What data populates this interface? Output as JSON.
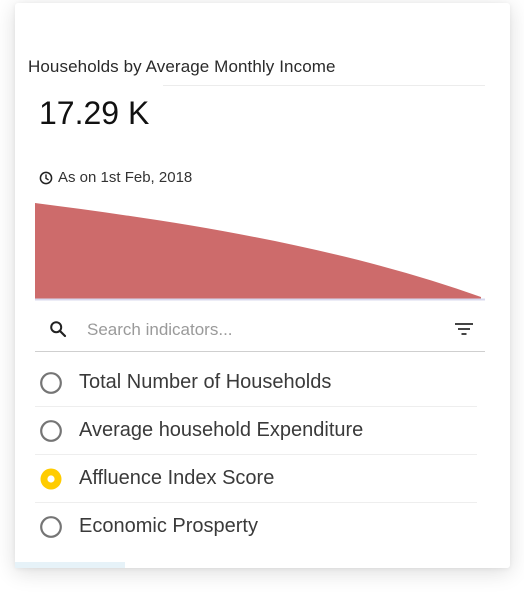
{
  "widget": {
    "title": "Households by Average Monthly Income",
    "value": "17.29 K",
    "as_of": "As on 1st Feb, 2018",
    "icons": {
      "timestamp": "clock-icon"
    }
  },
  "search": {
    "placeholder": "Search indicators...",
    "value": "",
    "icons": {
      "search": "search-icon",
      "filter": "filter-icon"
    }
  },
  "indicators": [
    {
      "label": "Total Number of Households",
      "selected": false
    },
    {
      "label": "Average household Expenditure",
      "selected": false
    },
    {
      "label": "Affluence Index Score",
      "selected": true
    },
    {
      "label": "Economic Prosperty",
      "selected": false
    }
  ],
  "colors": {
    "area_fill": "#cd6b6b",
    "radio_selected": "#ffcc00",
    "radio_unselected": "#757575",
    "chart_baseline": "#d8d8ee"
  }
}
